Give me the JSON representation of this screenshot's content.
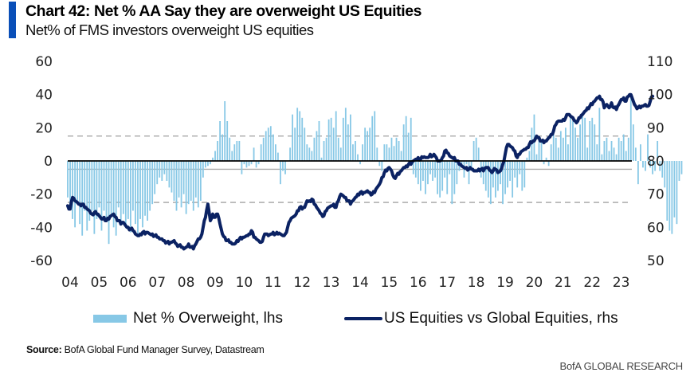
{
  "header": {
    "title": "Chart 42: Net % AA Say they are overweight US Equities",
    "subtitle": "Net% of FMS investors overweight US equities"
  },
  "footer": {
    "source_label": "Source:",
    "source_text": "BofA Global Fund Manager Survey, Datastream",
    "brand": "BofA GLOBAL RESEARCH"
  },
  "colors": {
    "bars": "#87c8e6",
    "line": "#0b2263",
    "zero_line": "#000000",
    "avg_line": "#aaaaaa",
    "band_line": "#b0b0b0",
    "accent": "#0a4fb8"
  },
  "chart_data": {
    "type": "bar+line",
    "title": "Chart 42: Net % AA Say they are overweight US Equities",
    "subtitle": "Net% of FMS investors overweight US equities",
    "x_ticks": [
      "04",
      "05",
      "06",
      "07",
      "08",
      "09",
      "10",
      "11",
      "12",
      "13",
      "14",
      "15",
      "16",
      "17",
      "18",
      "19",
      "20",
      "21",
      "22",
      "23"
    ],
    "x_range": [
      2004.0,
      2023.45
    ],
    "left_axis": {
      "label": "Net % Overweight, lhs",
      "ticks": [
        60,
        40,
        20,
        0,
        -20,
        -40,
        -60
      ],
      "range": [
        -60,
        60
      ]
    },
    "right_axis": {
      "label": "US Equities vs Global Equities, rhs",
      "ticks": [
        110,
        100,
        90,
        80,
        70,
        60,
        50
      ],
      "range": [
        50,
        110
      ]
    },
    "reference_lines": {
      "zero": 0,
      "average": -5,
      "upper_band": 15,
      "lower_band": -25
    },
    "legend": {
      "position": "bottom",
      "items": [
        {
          "name": "Net % Overweight, lhs",
          "type": "bar"
        },
        {
          "name": "US Equities vs Global Equities, rhs",
          "type": "line"
        }
      ]
    },
    "series": [
      {
        "name": "Net % Overweight, lhs",
        "axis": "left",
        "type": "bar",
        "start": 2004.0,
        "step_months": 1,
        "values": [
          -22,
          -28,
          -35,
          -40,
          -25,
          -38,
          -45,
          -30,
          -42,
          -36,
          -30,
          -44,
          -35,
          -28,
          -42,
          -30,
          -36,
          -50,
          -33,
          -40,
          -45,
          -28,
          -38,
          -32,
          -40,
          -35,
          -43,
          -30,
          -38,
          -46,
          -35,
          -40,
          -33,
          -36,
          -30,
          -26,
          -20,
          -14,
          -10,
          -12,
          -8,
          -12,
          -16,
          -19,
          -24,
          -30,
          -22,
          -28,
          -20,
          -32,
          -26,
          -24,
          -30,
          -22,
          -28,
          -24,
          -10,
          -4,
          -3,
          -2,
          2,
          6,
          12,
          24,
          16,
          36,
          24,
          14,
          6,
          10,
          12,
          12,
          -8,
          -2,
          -4,
          -3,
          -2,
          8,
          -4,
          -2,
          10,
          14,
          18,
          20,
          21,
          16,
          10,
          5,
          -14,
          -6,
          -8,
          0,
          8,
          28,
          20,
          32,
          30,
          26,
          20,
          10,
          8,
          6,
          14,
          18,
          24,
          2,
          12,
          14,
          25,
          26,
          20,
          30,
          14,
          8,
          26,
          32,
          22,
          28,
          10,
          12,
          4,
          -2,
          10,
          20,
          18,
          20,
          27,
          30,
          8,
          -3,
          -6,
          10,
          10,
          8,
          14,
          9,
          14,
          12,
          6,
          22,
          27,
          17,
          26,
          -8,
          -10,
          -14,
          -18,
          -12,
          -20,
          -14,
          -8,
          -12,
          -10,
          -20,
          -22,
          -18,
          -10,
          -20,
          -8,
          -26,
          -20,
          -14,
          -6,
          -4,
          -10,
          -2,
          -14,
          -6,
          12,
          14,
          8,
          -10,
          -14,
          -18,
          -22,
          -26,
          -16,
          -22,
          -18,
          -14,
          -26,
          -20,
          -16,
          -12,
          -22,
          -10,
          -16,
          -8,
          -18,
          -16,
          2,
          6,
          20,
          28,
          4,
          14,
          12,
          -2,
          2,
          -3,
          10,
          16,
          14,
          8,
          18,
          14,
          20,
          10,
          26,
          24,
          20,
          14,
          22,
          28,
          26,
          8,
          24,
          26,
          22,
          10,
          32,
          4,
          12,
          14,
          6,
          12,
          8,
          4,
          14,
          12,
          16,
          6,
          14,
          38,
          22,
          8,
          -14,
          10,
          -4,
          -6,
          16,
          -4,
          -8,
          -6,
          12,
          -6,
          -10,
          -16,
          -36,
          -42,
          -44,
          -34,
          -38,
          -12,
          -8
        ]
      },
      {
        "name": "US Equities vs Global Equities, rhs",
        "axis": "right",
        "type": "line",
        "start": 2004.0,
        "step_months": 1,
        "values": [
          66.5,
          65.5,
          69,
          68,
          67.5,
          67,
          67,
          66,
          65.5,
          65,
          64,
          64.5,
          64,
          63.5,
          62.5,
          63,
          62,
          62.5,
          63.5,
          64,
          63,
          62,
          61,
          61.5,
          60.5,
          60,
          59.5,
          59,
          58,
          57.5,
          58,
          58.5,
          58,
          58.5,
          58,
          58,
          57.5,
          57,
          56.5,
          56.5,
          56,
          55.5,
          55,
          55.5,
          56,
          55,
          54.5,
          54,
          53.5,
          54,
          55,
          54,
          53.5,
          55,
          56.5,
          57,
          60,
          63,
          67,
          62,
          64,
          63,
          64,
          61,
          58,
          57,
          56,
          55.5,
          55,
          55,
          56,
          56.5,
          56.5,
          57,
          57.5,
          58,
          59,
          57,
          56.5,
          56,
          55.5,
          57,
          58,
          57.5,
          58,
          58.5,
          58,
          58,
          58,
          57.5,
          58,
          60,
          62,
          63,
          63.5,
          65,
          66,
          65.5,
          66,
          68,
          68,
          68.5,
          67,
          66,
          65,
          64,
          63.5,
          65,
          66,
          66.5,
          67,
          66,
          68,
          70,
          69.5,
          69,
          68,
          67,
          68,
          69,
          70,
          70.5,
          70,
          70.5,
          71,
          70.5,
          70,
          70.5,
          72,
          73,
          75,
          76.5,
          77,
          78,
          77,
          75,
          75.5,
          76,
          77,
          78,
          78.5,
          79,
          79,
          80,
          80.5,
          81,
          80.5,
          81,
          81,
          81,
          82,
          81.5,
          81.5,
          80,
          80,
          81,
          83,
          82.5,
          81.5,
          81,
          81,
          80,
          79,
          78.5,
          78,
          78,
          77.5,
          77.5,
          77,
          77,
          77.5,
          77.5,
          77,
          78,
          78,
          77,
          77,
          77.5,
          76.5,
          77,
          79,
          82,
          85,
          84.5,
          84,
          83,
          81,
          82,
          83,
          83.5,
          84,
          85,
          85.5,
          86,
          87.5,
          87,
          86,
          85.5,
          86,
          87,
          88,
          89,
          91,
          92,
          92,
          92.5,
          93,
          94,
          93.5,
          93,
          92,
          92,
          93,
          94,
          95,
          96,
          96.5,
          97,
          98,
          99,
          99.5,
          98.5,
          96,
          97,
          96,
          97.5,
          96,
          95.5,
          97,
          98.5,
          99,
          98,
          99.5,
          100,
          98,
          96.5,
          96,
          96,
          96.5,
          97,
          96.5,
          98,
          99.5
        ]
      }
    ]
  }
}
